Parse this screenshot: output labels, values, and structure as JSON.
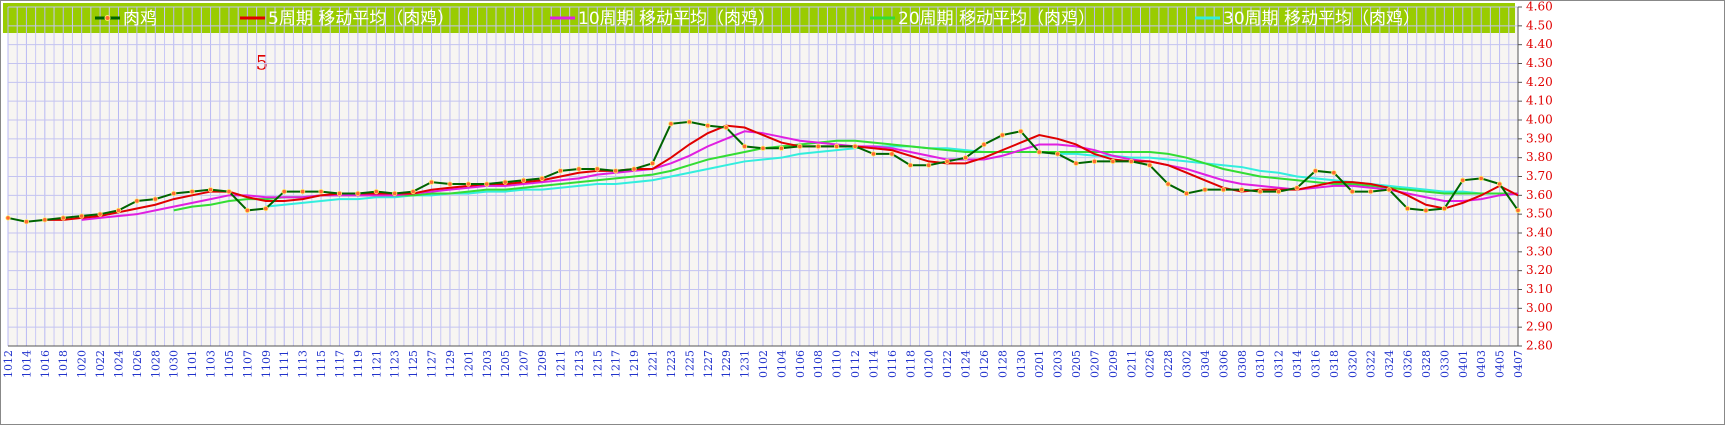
{
  "chart_data": {
    "type": "line",
    "annotation": "5",
    "categories": [
      "1012",
      "1014",
      "1016",
      "1018",
      "1020",
      "1022",
      "1024",
      "1026",
      "1028",
      "1030",
      "1101",
      "1103",
      "1105",
      "1107",
      "1109",
      "1111",
      "1113",
      "1115",
      "1117",
      "1119",
      "1121",
      "1123",
      "1125",
      "1127",
      "1129",
      "1201",
      "1203",
      "1205",
      "1207",
      "1209",
      "1211",
      "1213",
      "1215",
      "1217",
      "1219",
      "1221",
      "1223",
      "1225",
      "1227",
      "1229",
      "1231",
      "0102",
      "0104",
      "0106",
      "0108",
      "0110",
      "0112",
      "0114",
      "0116",
      "0118",
      "0120",
      "0122",
      "0124",
      "0126",
      "0128",
      "0130",
      "0201",
      "0203",
      "0205",
      "0207",
      "0209",
      "0211",
      "0226",
      "0228",
      "0302",
      "0304",
      "0306",
      "0308",
      "0310",
      "0312",
      "0314",
      "0316",
      "0318",
      "0320",
      "0322",
      "0324",
      "0326",
      "0328",
      "0330",
      "0401",
      "0403",
      "0405",
      "0407"
    ],
    "series": [
      {
        "name": "肉鸡",
        "color": "#006400",
        "values": [
          3.48,
          3.46,
          3.47,
          3.48,
          3.49,
          3.5,
          3.52,
          3.57,
          3.58,
          3.61,
          3.62,
          3.63,
          3.62,
          3.52,
          3.53,
          3.62,
          3.62,
          3.62,
          3.61,
          3.61,
          3.62,
          3.61,
          3.62,
          3.67,
          3.66,
          3.66,
          3.66,
          3.67,
          3.68,
          3.69,
          3.73,
          3.74,
          3.74,
          3.73,
          3.74,
          3.77,
          3.98,
          3.99,
          3.97,
          3.96,
          3.86,
          3.85,
          3.85,
          3.86,
          3.86,
          3.86,
          3.86,
          3.82,
          3.82,
          3.76,
          3.76,
          3.78,
          3.8,
          3.87,
          3.92,
          3.94,
          3.83,
          3.82,
          3.77,
          3.78,
          3.78,
          3.78,
          3.76,
          3.66,
          3.61,
          3.63,
          3.63,
          3.63,
          3.62,
          3.62,
          3.64,
          3.73,
          3.72,
          3.62,
          3.62,
          3.63,
          3.53,
          3.52,
          3.53,
          3.68,
          3.69,
          3.66,
          3.52
        ]
      },
      {
        "name": "5周期 移动平均（肉鸡）",
        "color": "#e00000",
        "values": [
          null,
          null,
          3.47,
          3.47,
          3.48,
          3.49,
          3.51,
          3.53,
          3.55,
          3.58,
          3.6,
          3.62,
          3.62,
          3.59,
          3.57,
          3.57,
          3.58,
          3.6,
          3.61,
          3.61,
          3.61,
          3.61,
          3.61,
          3.63,
          3.64,
          3.65,
          3.66,
          3.66,
          3.67,
          3.68,
          3.7,
          3.72,
          3.73,
          3.73,
          3.74,
          3.74,
          3.8,
          3.87,
          3.93,
          3.97,
          3.96,
          3.92,
          3.88,
          3.86,
          3.86,
          3.86,
          3.86,
          3.85,
          3.84,
          3.81,
          3.78,
          3.77,
          3.77,
          3.8,
          3.84,
          3.88,
          3.92,
          3.9,
          3.87,
          3.82,
          3.79,
          3.78,
          3.78,
          3.76,
          3.72,
          3.68,
          3.64,
          3.62,
          3.63,
          3.63,
          3.63,
          3.65,
          3.67,
          3.67,
          3.66,
          3.64,
          3.6,
          3.55,
          3.53,
          3.56,
          3.6,
          3.65,
          3.6
        ]
      },
      {
        "name": "10周期 移动平均（肉鸡）",
        "color": "#e020e0",
        "values": [
          null,
          null,
          null,
          null,
          3.47,
          3.48,
          3.49,
          3.5,
          3.52,
          3.54,
          3.56,
          3.58,
          3.6,
          3.6,
          3.59,
          3.59,
          3.59,
          3.6,
          3.6,
          3.6,
          3.6,
          3.6,
          3.61,
          3.62,
          3.63,
          3.64,
          3.65,
          3.65,
          3.66,
          3.67,
          3.68,
          3.69,
          3.71,
          3.72,
          3.73,
          3.74,
          3.77,
          3.81,
          3.86,
          3.9,
          3.94,
          3.93,
          3.91,
          3.89,
          3.88,
          3.87,
          3.86,
          3.86,
          3.85,
          3.83,
          3.81,
          3.79,
          3.79,
          3.79,
          3.81,
          3.84,
          3.87,
          3.87,
          3.86,
          3.84,
          3.81,
          3.79,
          3.78,
          3.76,
          3.74,
          3.71,
          3.68,
          3.66,
          3.65,
          3.64,
          3.63,
          3.64,
          3.65,
          3.65,
          3.64,
          3.63,
          3.61,
          3.59,
          3.57,
          3.57,
          3.58,
          3.6,
          3.61
        ]
      },
      {
        "name": "20周期 移动平均（肉鸡）",
        "color": "#33dd33",
        "values": [
          null,
          null,
          null,
          null,
          null,
          null,
          null,
          null,
          null,
          3.52,
          3.54,
          3.55,
          3.57,
          3.58,
          3.58,
          3.59,
          3.59,
          3.6,
          3.6,
          3.6,
          3.6,
          3.6,
          3.6,
          3.61,
          3.61,
          3.62,
          3.63,
          3.63,
          3.64,
          3.65,
          3.66,
          3.67,
          3.68,
          3.69,
          3.7,
          3.71,
          3.73,
          3.76,
          3.79,
          3.81,
          3.83,
          3.85,
          3.86,
          3.87,
          3.88,
          3.89,
          3.89,
          3.88,
          3.87,
          3.86,
          3.85,
          3.84,
          3.83,
          3.83,
          3.83,
          3.83,
          3.83,
          3.83,
          3.83,
          3.83,
          3.83,
          3.83,
          3.83,
          3.82,
          3.8,
          3.77,
          3.74,
          3.72,
          3.7,
          3.69,
          3.68,
          3.67,
          3.66,
          3.66,
          3.65,
          3.64,
          3.63,
          3.62,
          3.61,
          3.61,
          3.61,
          3.61,
          3.61
        ]
      },
      {
        "name": "30周期 移动平均（肉鸡）",
        "color": "#33eedd",
        "values": [
          null,
          null,
          null,
          null,
          null,
          null,
          null,
          null,
          null,
          null,
          null,
          null,
          null,
          null,
          3.54,
          3.55,
          3.56,
          3.57,
          3.58,
          3.58,
          3.59,
          3.59,
          3.6,
          3.6,
          3.61,
          3.61,
          3.62,
          3.62,
          3.63,
          3.63,
          3.64,
          3.65,
          3.66,
          3.66,
          3.67,
          3.68,
          3.7,
          3.72,
          3.74,
          3.76,
          3.78,
          3.79,
          3.8,
          3.82,
          3.83,
          3.84,
          3.85,
          3.86,
          3.86,
          3.86,
          3.85,
          3.85,
          3.84,
          3.83,
          3.83,
          3.83,
          3.83,
          3.82,
          3.82,
          3.81,
          3.81,
          3.8,
          3.8,
          3.79,
          3.78,
          3.77,
          3.76,
          3.75,
          3.73,
          3.72,
          3.7,
          3.69,
          3.68,
          3.67,
          3.66,
          3.65,
          3.64,
          3.63,
          3.62,
          3.62,
          3.61,
          3.61,
          3.61
        ]
      }
    ],
    "ylim": [
      2.8,
      4.6
    ],
    "yticks": [
      {
        "value": 2.8,
        "label": "2.80"
      },
      {
        "value": 2.9,
        "label": "2.90"
      },
      {
        "value": 3.0,
        "label": "3.00"
      },
      {
        "value": 3.1,
        "label": "3.10"
      },
      {
        "value": 3.2,
        "label": "3.20"
      },
      {
        "value": 3.3,
        "label": "3.30"
      },
      {
        "value": 3.4,
        "label": "3.40"
      },
      {
        "value": 3.5,
        "label": "3.50"
      },
      {
        "value": 3.6,
        "label": "3.60"
      },
      {
        "value": 3.7,
        "label": "3.70"
      },
      {
        "value": 3.8,
        "label": "3.80"
      },
      {
        "value": 3.9,
        "label": "3.90"
      },
      {
        "value": 4.0,
        "label": "4.00"
      },
      {
        "value": 4.1,
        "label": "4.10"
      },
      {
        "value": 4.2,
        "label": "4.20"
      },
      {
        "value": 4.3,
        "label": "4.30"
      },
      {
        "value": 4.4,
        "label": "4.40"
      },
      {
        "value": 4.5,
        "label": "4.50"
      },
      {
        "value": 4.6,
        "label": "4.60"
      }
    ],
    "grid": true,
    "legend": "top"
  }
}
